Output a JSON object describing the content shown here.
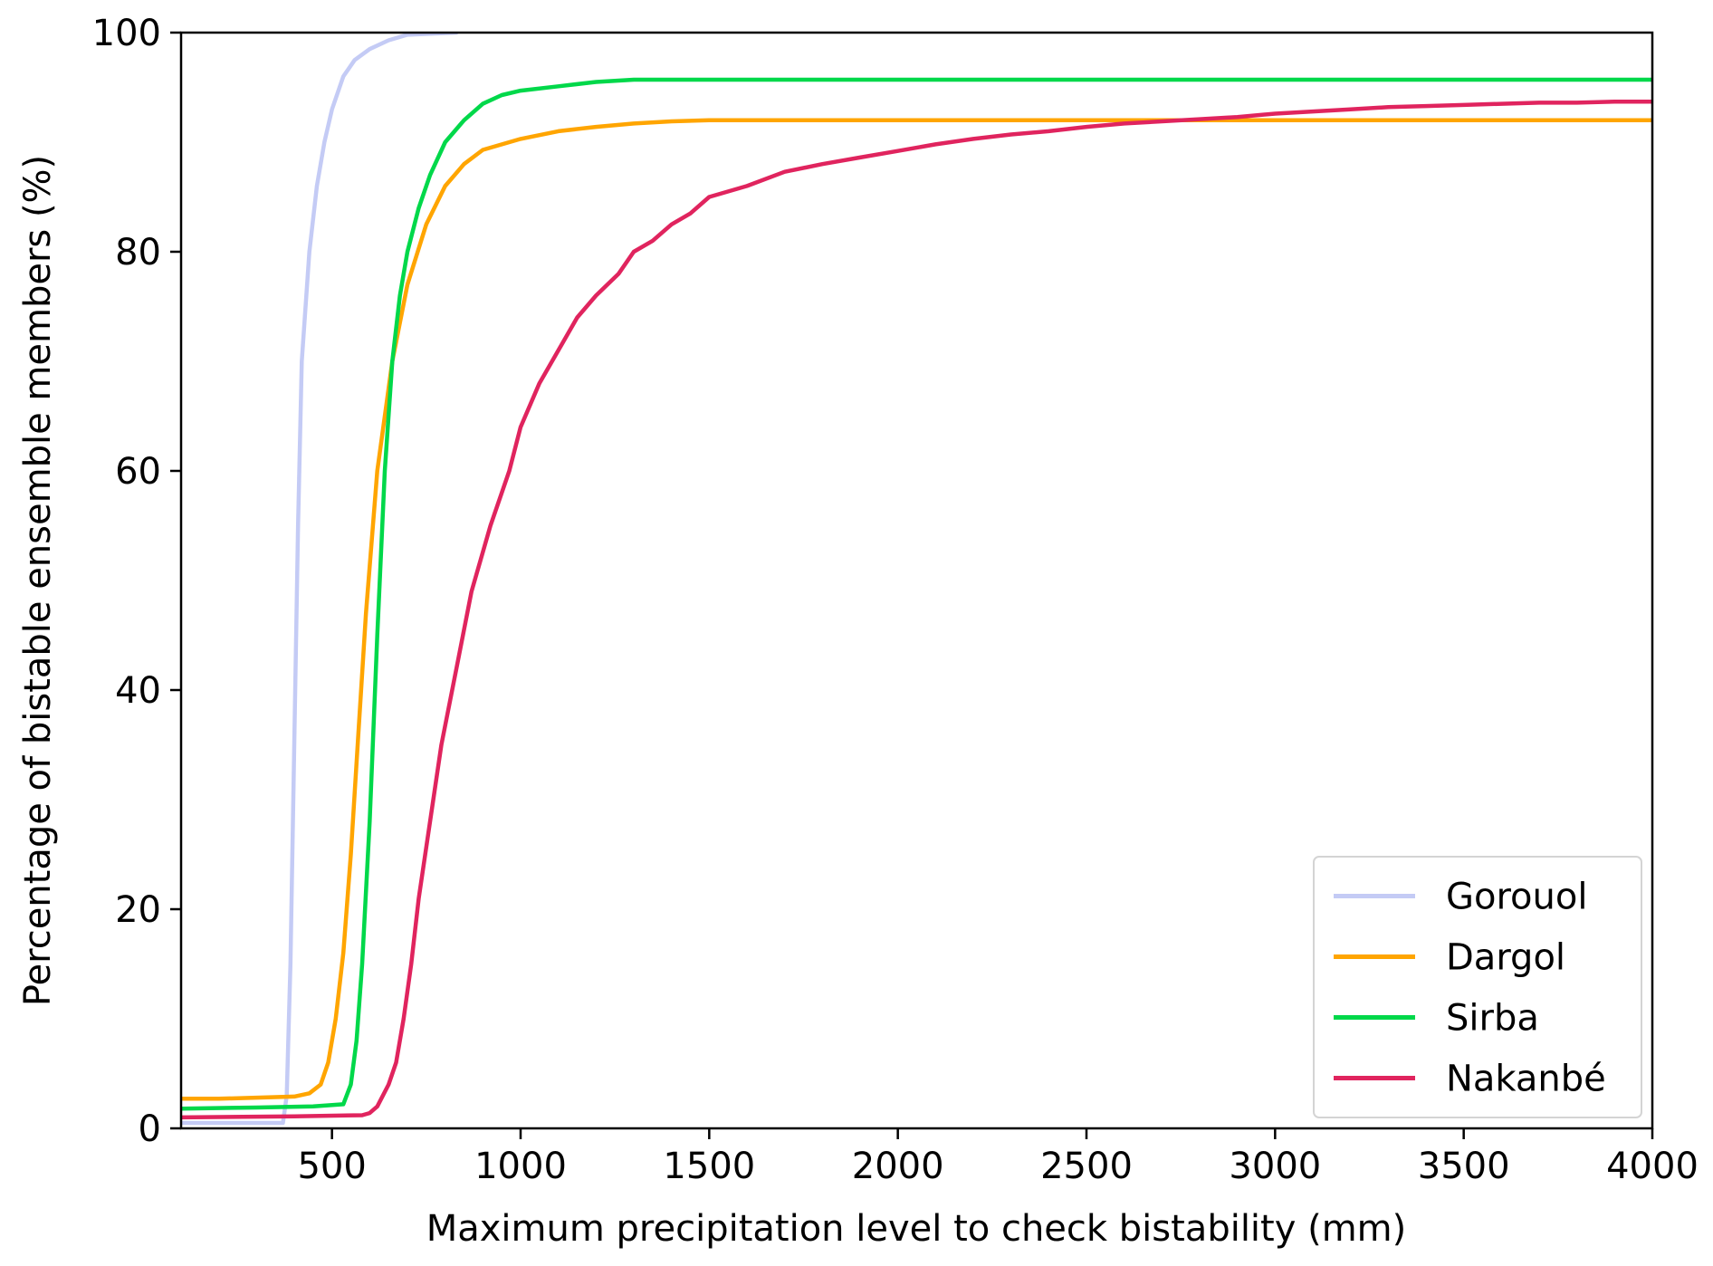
{
  "chart_data": {
    "type": "line",
    "title": "",
    "xlabel": "Maximum precipitation level to check bistability (mm)",
    "ylabel": "Percentage of bistable ensemble members (%)",
    "xlim": [
      100,
      4000
    ],
    "ylim": [
      0,
      100
    ],
    "x_ticks": [
      500,
      1000,
      1500,
      2000,
      2500,
      3000,
      3500,
      4000
    ],
    "x_tick_labels": [
      "500",
      "1000",
      "1500",
      "2000",
      "2500",
      "3000",
      "3500",
      "4000"
    ],
    "y_ticks": [
      0,
      20,
      40,
      60,
      80,
      100
    ],
    "y_tick_labels": [
      "0",
      "20",
      "40",
      "60",
      "80",
      "100"
    ],
    "grid": false,
    "legend_position": "lower-right",
    "series": [
      {
        "name": "Gorouol",
        "color": "#c4cbf5",
        "points": [
          [
            100,
            0.5
          ],
          [
            370,
            0.5
          ],
          [
            380,
            3
          ],
          [
            390,
            15
          ],
          [
            400,
            35
          ],
          [
            410,
            55
          ],
          [
            420,
            70
          ],
          [
            440,
            80
          ],
          [
            460,
            86
          ],
          [
            480,
            90
          ],
          [
            500,
            93
          ],
          [
            530,
            96
          ],
          [
            560,
            97.5
          ],
          [
            600,
            98.5
          ],
          [
            650,
            99.3
          ],
          [
            700,
            99.8
          ],
          [
            830,
            100
          ]
        ]
      },
      {
        "name": "Dargol",
        "color": "#ffa500",
        "points": [
          [
            100,
            2.7
          ],
          [
            200,
            2.7
          ],
          [
            300,
            2.8
          ],
          [
            400,
            2.9
          ],
          [
            440,
            3.2
          ],
          [
            470,
            4
          ],
          [
            490,
            6
          ],
          [
            510,
            10
          ],
          [
            530,
            16
          ],
          [
            550,
            25
          ],
          [
            570,
            36
          ],
          [
            590,
            47
          ],
          [
            620,
            60
          ],
          [
            660,
            70
          ],
          [
            700,
            77
          ],
          [
            750,
            82.5
          ],
          [
            800,
            86
          ],
          [
            850,
            88
          ],
          [
            900,
            89.3
          ],
          [
            1000,
            90.3
          ],
          [
            1100,
            91
          ],
          [
            1200,
            91.4
          ],
          [
            1300,
            91.7
          ],
          [
            1400,
            91.9
          ],
          [
            1500,
            92
          ],
          [
            4000,
            92
          ]
        ]
      },
      {
        "name": "Sirba",
        "color": "#00d84a",
        "points": [
          [
            100,
            1.8
          ],
          [
            300,
            1.9
          ],
          [
            450,
            2
          ],
          [
            530,
            2.2
          ],
          [
            550,
            4
          ],
          [
            565,
            8
          ],
          [
            580,
            15
          ],
          [
            600,
            28
          ],
          [
            620,
            45
          ],
          [
            640,
            60
          ],
          [
            660,
            70
          ],
          [
            680,
            76
          ],
          [
            700,
            80
          ],
          [
            730,
            84
          ],
          [
            760,
            87
          ],
          [
            800,
            90
          ],
          [
            850,
            92
          ],
          [
            900,
            93.5
          ],
          [
            950,
            94.3
          ],
          [
            1000,
            94.7
          ],
          [
            1100,
            95.1
          ],
          [
            1200,
            95.5
          ],
          [
            1300,
            95.7
          ],
          [
            4000,
            95.7
          ]
        ]
      },
      {
        "name": "Nakanbé",
        "color": "#e0245e",
        "points": [
          [
            100,
            1
          ],
          [
            400,
            1.1
          ],
          [
            580,
            1.2
          ],
          [
            600,
            1.4
          ],
          [
            620,
            2
          ],
          [
            650,
            4
          ],
          [
            670,
            6
          ],
          [
            690,
            10
          ],
          [
            710,
            15
          ],
          [
            730,
            21
          ],
          [
            760,
            28
          ],
          [
            790,
            35
          ],
          [
            830,
            42
          ],
          [
            870,
            49
          ],
          [
            920,
            55
          ],
          [
            970,
            60
          ],
          [
            1000,
            64
          ],
          [
            1050,
            68
          ],
          [
            1100,
            71
          ],
          [
            1150,
            74
          ],
          [
            1200,
            76
          ],
          [
            1260,
            78
          ],
          [
            1300,
            80
          ],
          [
            1350,
            81
          ],
          [
            1400,
            82.5
          ],
          [
            1450,
            83.5
          ],
          [
            1500,
            85
          ],
          [
            1600,
            86
          ],
          [
            1700,
            87.3
          ],
          [
            1800,
            88
          ],
          [
            1900,
            88.6
          ],
          [
            2000,
            89.2
          ],
          [
            2100,
            89.8
          ],
          [
            2200,
            90.3
          ],
          [
            2300,
            90.7
          ],
          [
            2400,
            91
          ],
          [
            2500,
            91.4
          ],
          [
            2600,
            91.7
          ],
          [
            2700,
            91.9
          ],
          [
            2800,
            92.1
          ],
          [
            2900,
            92.3
          ],
          [
            3000,
            92.6
          ],
          [
            3100,
            92.8
          ],
          [
            3200,
            93
          ],
          [
            3300,
            93.2
          ],
          [
            3400,
            93.3
          ],
          [
            3500,
            93.4
          ],
          [
            3600,
            93.5
          ],
          [
            3700,
            93.6
          ],
          [
            3800,
            93.6
          ],
          [
            3900,
            93.7
          ],
          [
            4000,
            93.7
          ]
        ]
      }
    ]
  }
}
